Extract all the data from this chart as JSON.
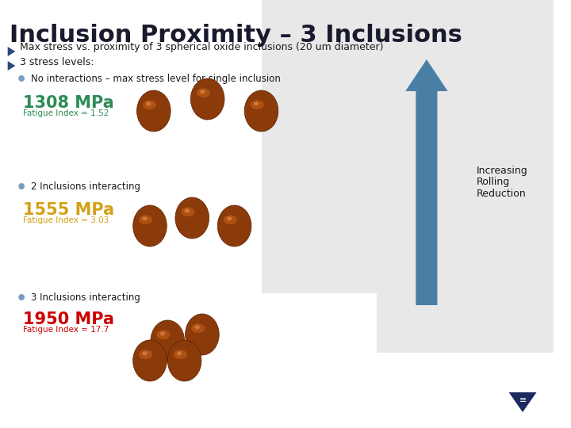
{
  "title": "Inclusion Proximity – 3 Inclusions",
  "title_fontsize": 22,
  "title_color": "#1a1a2e",
  "bullet1": "Max stress vs. proximity of 3 spherical oxide inclusions (20 um diameter)",
  "bullet2": "3 stress levels:",
  "sub_bullet1": "No interactions – max stress level for single inclusion",
  "sub_bullet2": "2 Inclusions interacting",
  "sub_bullet3": "3 Inclusions interacting",
  "stress1_mpa": "1308 MPa",
  "stress1_fi": "Fatigue Index = 1.52",
  "stress1_color": "#2e8b57",
  "stress2_mpa": "1555 MPa",
  "stress2_fi": "Fatigue Index = 3.03",
  "stress2_color": "#d4a017",
  "stress3_mpa": "1950 MPa",
  "stress3_fi": "Fatigue Index = 17.7",
  "stress3_color": "#cc0000",
  "arrow_color": "#4a7fa5",
  "arrow_label": "Increasing\nRolling\nReduction",
  "bg_color": "#ffffff",
  "panel_color": "#e8e8e8",
  "inclusion_color_outer": "#8b3a0a",
  "inclusion_color_highlight": "#c8601a",
  "logo_color": "#1a2a5e",
  "bullet_color": "#2a4a7a",
  "text_color": "#1a1a1a"
}
